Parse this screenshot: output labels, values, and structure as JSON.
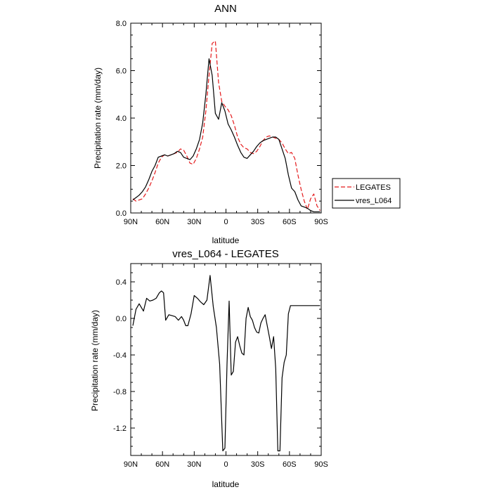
{
  "chart_data": [
    {
      "type": "line",
      "title": "ANN",
      "xlabel": "latitude",
      "ylabel": "Precipitation rate (mm/day)",
      "xlim": [
        -90,
        90
      ],
      "ylim": [
        0,
        8
      ],
      "x_ticks": [
        -90,
        -60,
        -30,
        0,
        30,
        60,
        90
      ],
      "x_tick_labels": [
        "90N",
        "60N",
        "30N",
        "0",
        "30S",
        "60S",
        "90S"
      ],
      "y_ticks": [
        0,
        2,
        4,
        6,
        8
      ],
      "y_tick_labels": [
        "0.0",
        "2.0",
        "4.0",
        "6.0",
        "8.0"
      ],
      "legend_position": "right-outside",
      "series": [
        {
          "name": "LEGATES",
          "color": "#e41a1c",
          "style": "dashed",
          "x": [
            -88,
            -85,
            -82,
            -79,
            -76,
            -73,
            -70,
            -67,
            -64,
            -61,
            -58,
            -55,
            -52,
            -49,
            -46,
            -43,
            -40,
            -37,
            -34,
            -31,
            -28,
            -25,
            -22,
            -19,
            -16,
            -13,
            -10,
            -7,
            -4,
            -1,
            2,
            5,
            8,
            11,
            14,
            17,
            20,
            23,
            26,
            29,
            32,
            35,
            38,
            41,
            44,
            47,
            50,
            53,
            56,
            59,
            62,
            65,
            68,
            71,
            74,
            77,
            80,
            83,
            86,
            89
          ],
          "values": [
            0.6,
            0.5,
            0.55,
            0.6,
            0.8,
            1.05,
            1.35,
            1.7,
            2.1,
            2.35,
            2.45,
            2.4,
            2.45,
            2.5,
            2.55,
            2.7,
            2.65,
            2.4,
            2.1,
            2.05,
            2.3,
            2.7,
            3.2,
            4.3,
            5.8,
            7.15,
            7.25,
            5.5,
            4.7,
            4.5,
            4.35,
            4.1,
            3.7,
            3.2,
            2.9,
            2.75,
            2.7,
            2.55,
            2.5,
            2.6,
            2.8,
            3.05,
            3.2,
            3.25,
            3.2,
            3.15,
            3.1,
            2.95,
            2.7,
            2.5,
            2.55,
            2.3,
            1.6,
            1.0,
            0.5,
            0.15,
            0.6,
            0.8,
            0.3,
            0.1
          ]
        },
        {
          "name": "vres_L064",
          "color": "#000000",
          "style": "solid",
          "x": [
            -88,
            -85,
            -82,
            -79,
            -76,
            -73,
            -70,
            -67,
            -64,
            -61,
            -58,
            -55,
            -52,
            -49,
            -46,
            -43,
            -40,
            -37,
            -34,
            -31,
            -28,
            -25,
            -22,
            -19,
            -16,
            -13,
            -10,
            -7,
            -4,
            -1,
            2,
            5,
            8,
            11,
            14,
            17,
            20,
            23,
            26,
            29,
            32,
            35,
            38,
            41,
            44,
            47,
            50,
            53,
            56,
            59,
            62,
            65,
            68,
            71,
            74,
            77,
            80,
            83,
            86,
            89
          ],
          "values": [
            0.55,
            0.65,
            0.75,
            0.9,
            1.1,
            1.4,
            1.75,
            2.0,
            2.35,
            2.4,
            2.45,
            2.4,
            2.45,
            2.5,
            2.6,
            2.55,
            2.35,
            2.3,
            2.25,
            2.4,
            2.7,
            3.1,
            3.8,
            5.0,
            6.5,
            5.8,
            4.2,
            3.95,
            4.65,
            4.3,
            3.75,
            3.5,
            3.2,
            2.85,
            2.55,
            2.35,
            2.3,
            2.45,
            2.6,
            2.8,
            2.95,
            3.05,
            3.1,
            3.15,
            3.2,
            3.2,
            3.1,
            2.7,
            2.3,
            1.6,
            1.05,
            0.9,
            0.55,
            0.3,
            0.25,
            0.2,
            0.1,
            0.05,
            0.05,
            0.05
          ]
        }
      ]
    },
    {
      "type": "line",
      "title": "vres_L064 - LEGATES",
      "xlabel": "latitude",
      "ylabel": "Precipitation rate (mm/day)",
      "xlim": [
        -90,
        90
      ],
      "ylim": [
        -1.5,
        0.6
      ],
      "x_ticks": [
        -90,
        -60,
        -30,
        0,
        30,
        60,
        90
      ],
      "x_tick_labels": [
        "90N",
        "60N",
        "30N",
        "0",
        "30S",
        "60S",
        "90S"
      ],
      "y_ticks": [
        -1.2,
        -0.8,
        -0.4,
        0.0,
        0.4
      ],
      "y_tick_labels": [
        "-1.2",
        "-0.8",
        "-0.4",
        "0.0",
        "0.4"
      ],
      "series": [
        {
          "color": "#000000",
          "style": "solid",
          "x": [
            -88,
            -85,
            -82,
            -80,
            -78,
            -75,
            -72,
            -69,
            -66,
            -63,
            -61,
            -59,
            -57,
            -54,
            -51,
            -48,
            -45,
            -42,
            -40,
            -38,
            -36,
            -33,
            -30,
            -27,
            -24,
            -21,
            -18,
            -15,
            -12,
            -9,
            -6,
            -3,
            -1,
            1,
            3,
            5,
            7,
            9,
            11,
            13,
            15,
            17,
            19,
            21,
            23,
            25,
            27,
            29,
            31,
            33,
            35,
            37,
            39,
            41,
            43,
            45,
            47,
            49,
            51,
            53,
            55,
            57,
            59,
            61,
            63,
            65,
            67,
            69,
            71,
            73,
            75,
            77,
            79,
            81,
            83,
            85,
            87,
            89
          ],
          "values": [
            -0.08,
            0.1,
            0.16,
            0.12,
            0.08,
            0.22,
            0.19,
            0.2,
            0.22,
            0.28,
            0.3,
            0.28,
            -0.02,
            0.04,
            0.03,
            0.02,
            -0.02,
            0.02,
            -0.02,
            -0.08,
            -0.08,
            0.05,
            0.25,
            0.22,
            0.18,
            0.15,
            0.2,
            0.47,
            0.13,
            -0.1,
            -0.5,
            -1.45,
            -1.42,
            -0.5,
            0.19,
            -0.62,
            -0.58,
            -0.26,
            -0.2,
            -0.3,
            -0.38,
            -0.4,
            0.0,
            0.12,
            0.02,
            -0.02,
            -0.1,
            -0.15,
            -0.16,
            -0.05,
            0.0,
            0.04,
            -0.08,
            -0.2,
            -0.33,
            -0.2,
            -0.55,
            -1.45,
            -1.45,
            -0.65,
            -0.48,
            -0.4,
            0.05,
            0.14,
            0.14,
            0.14,
            0.14,
            0.14,
            0.14,
            0.14,
            0.14,
            0.14,
            0.14,
            0.14,
            0.14,
            0.14,
            0.14,
            0.14
          ]
        }
      ]
    }
  ]
}
